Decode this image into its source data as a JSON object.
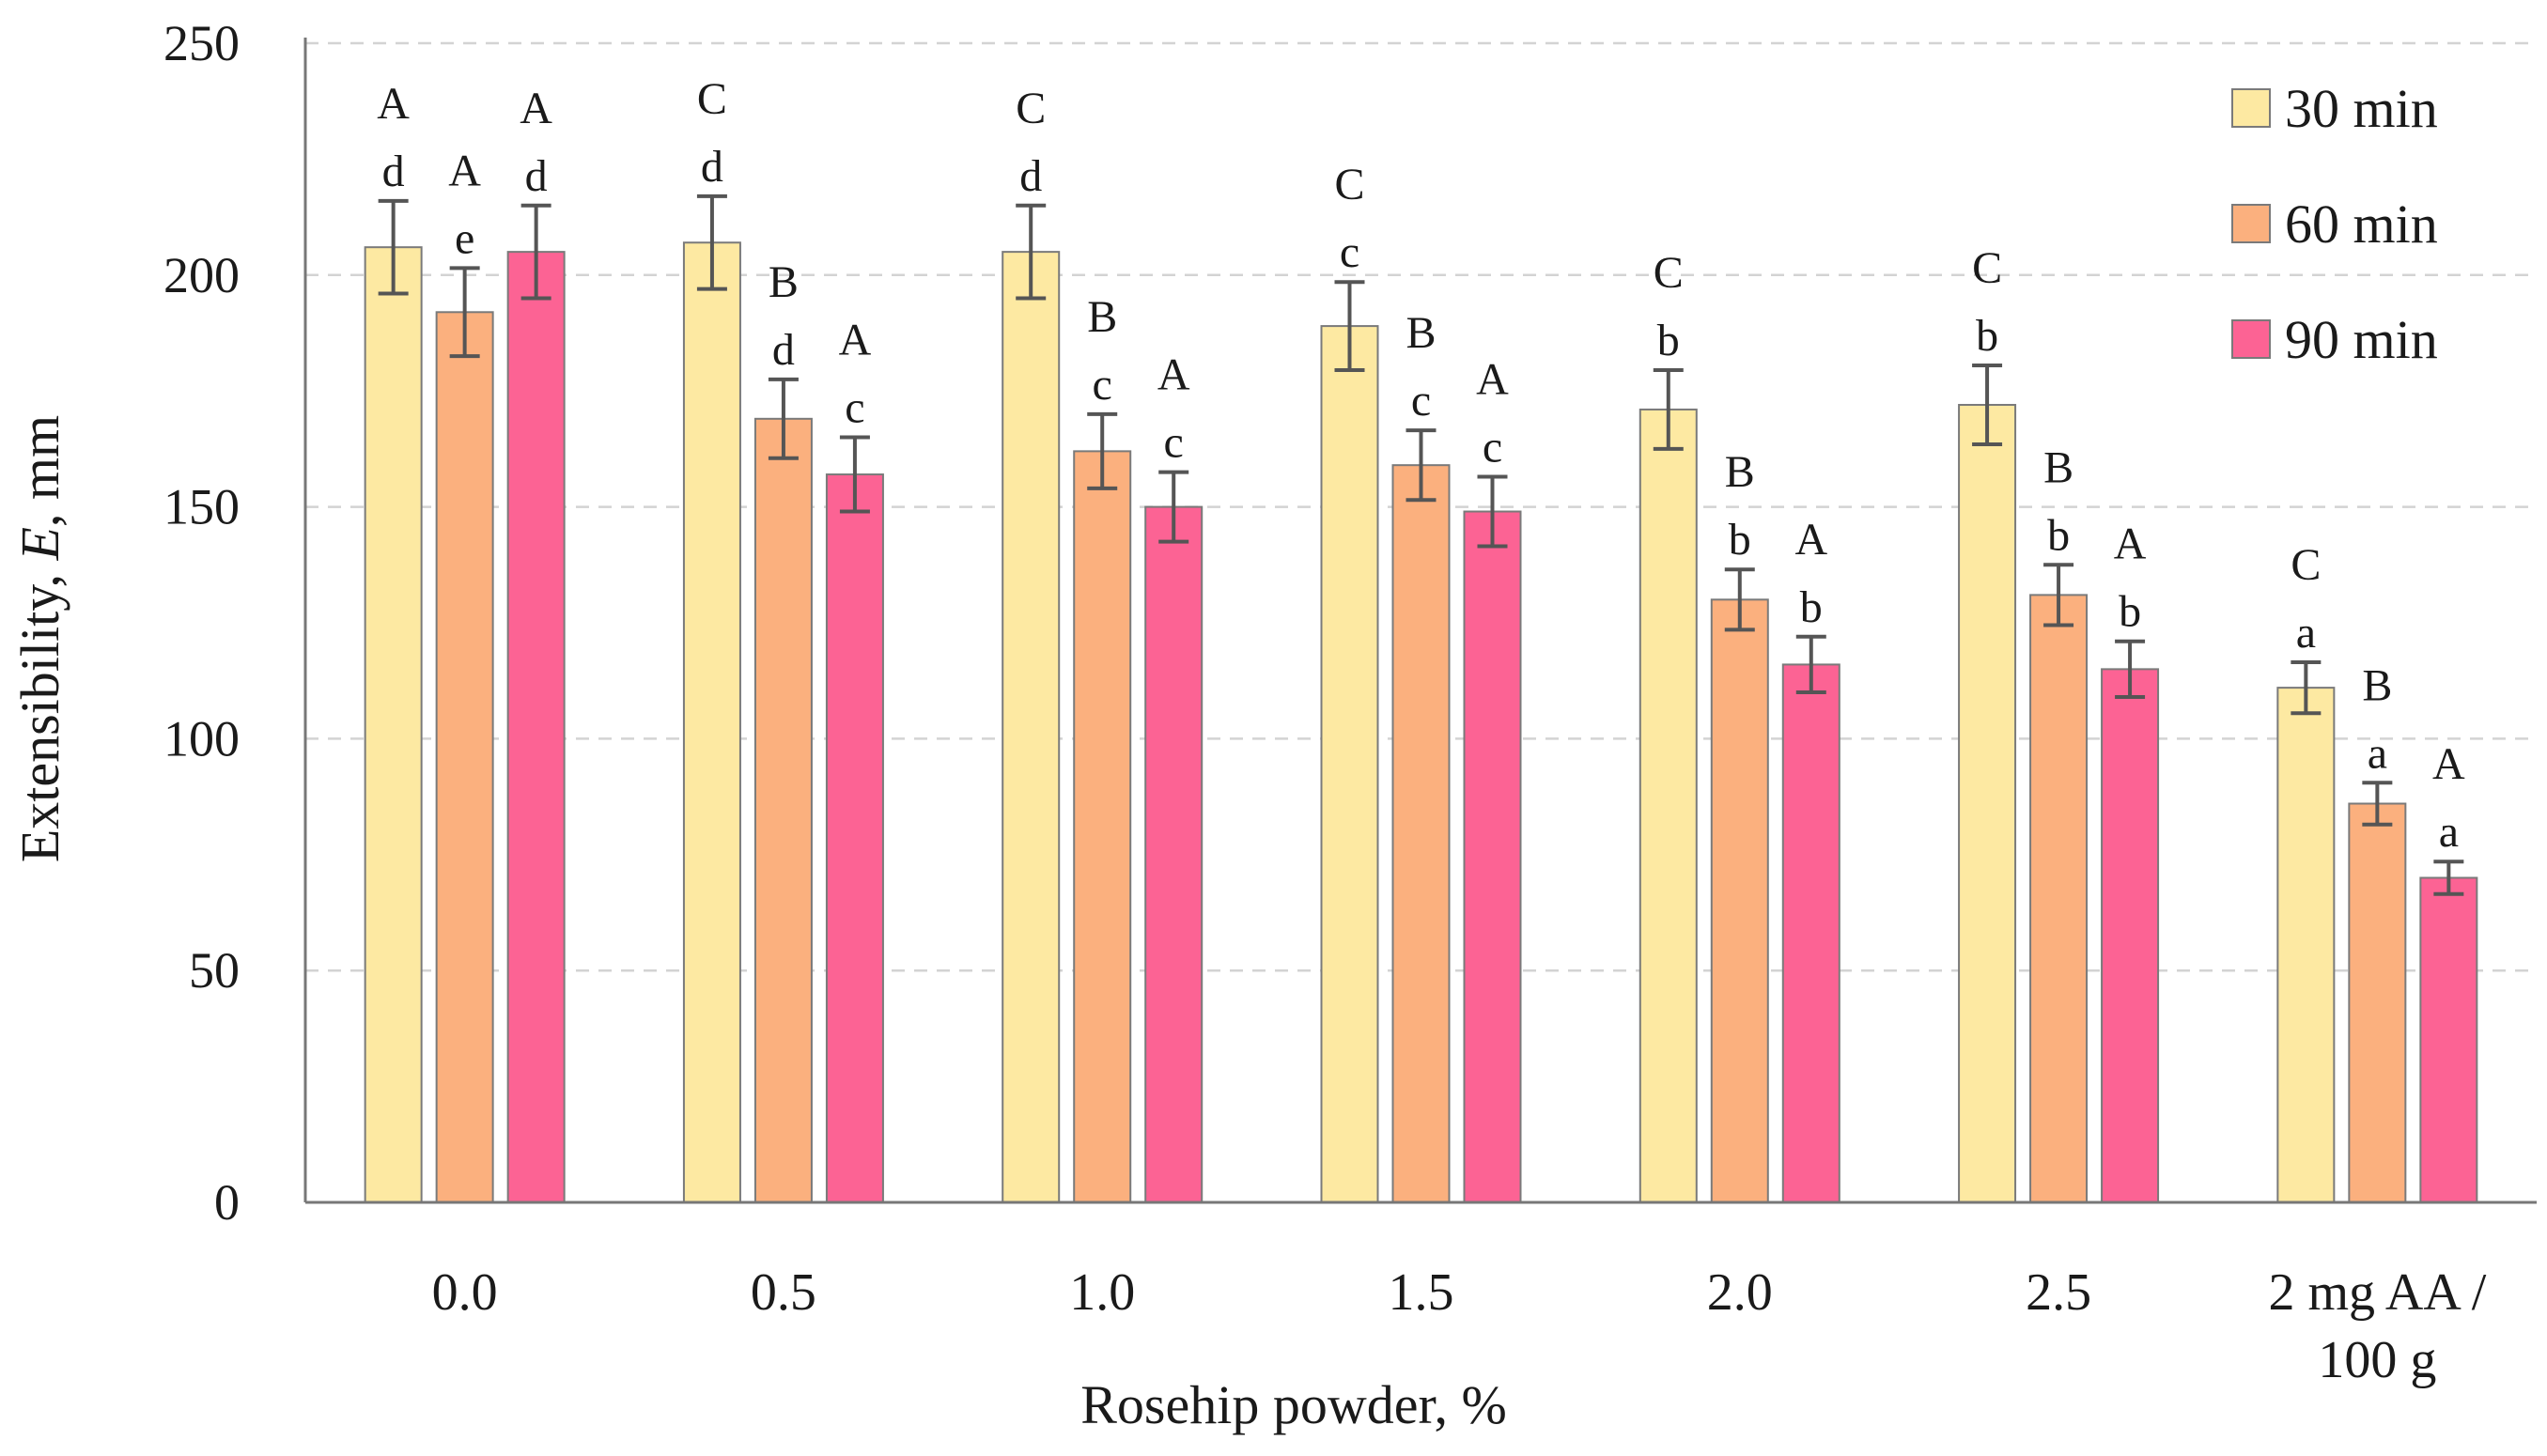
{
  "chart_data": {
    "type": "bar",
    "title": "",
    "xlabel": "Rosehip powder, %",
    "ylabel_parts": [
      "Extensibility, ",
      "E",
      ", mm"
    ],
    "ylim": [
      0,
      250
    ],
    "yticks": [
      0,
      50,
      100,
      150,
      200,
      250
    ],
    "grid": true,
    "legend_position": "top-right",
    "categories": [
      [
        "0.0"
      ],
      [
        "0.5"
      ],
      [
        "1.0"
      ],
      [
        "1.5"
      ],
      [
        "2.0"
      ],
      [
        "2.5"
      ],
      [
        "2 mg AA /",
        "100 g"
      ]
    ],
    "series": [
      {
        "name": "30 min",
        "color": "#fde9a2",
        "values": [
          206,
          207,
          205,
          189,
          171,
          172,
          111
        ],
        "errors": [
          10,
          10,
          10,
          9.5,
          8.5,
          8.5,
          5.5
        ],
        "letters_lower": [
          "d",
          "d",
          "d",
          "c",
          "b",
          "b",
          "a"
        ],
        "letters_upper": [
          "A",
          "C",
          "C",
          "C",
          "C",
          "C",
          "C"
        ]
      },
      {
        "name": "60 min",
        "color": "#fbb07e",
        "values": [
          192,
          169,
          162,
          159,
          130,
          131,
          86
        ],
        "errors": [
          9.5,
          8.5,
          8,
          7.5,
          6.5,
          6.5,
          4.5
        ],
        "letters_lower": [
          "e",
          "d",
          "c",
          "c",
          "b",
          "b",
          "a"
        ],
        "letters_upper": [
          "A",
          "B",
          "B",
          "B",
          "B",
          "B",
          "B"
        ]
      },
      {
        "name": "90 min",
        "color": "#fc6394",
        "values": [
          205,
          157,
          150,
          149,
          116,
          115,
          70
        ],
        "errors": [
          10,
          8,
          7.5,
          7.5,
          6,
          6,
          3.5
        ],
        "letters_lower": [
          "d",
          "c",
          "c",
          "c",
          "b",
          "b",
          "a"
        ],
        "letters_upper": [
          "A",
          "A",
          "A",
          "A",
          "A",
          "A",
          "A"
        ]
      }
    ]
  }
}
